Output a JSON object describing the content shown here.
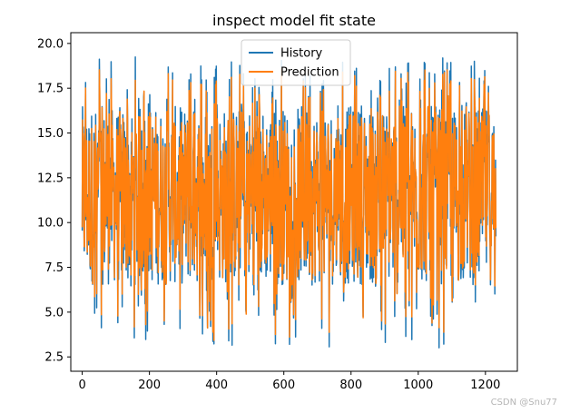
{
  "chart_data": {
    "type": "line",
    "title": "inspect model fit state",
    "xlabel": "",
    "ylabel": "",
    "xlim": [
      -34,
      1295
    ],
    "ylim": [
      1.7,
      20.6
    ],
    "xticks": [
      0,
      200,
      400,
      600,
      800,
      1000,
      1200
    ],
    "yticks": [
      2.5,
      5.0,
      7.5,
      10.0,
      12.5,
      15.0,
      17.5,
      20.0
    ],
    "xtick_labels": [
      "0",
      "200",
      "400",
      "600",
      "800",
      "1000",
      "1200"
    ],
    "ytick_labels": [
      "2.5",
      "5.0",
      "7.5",
      "10.0",
      "12.5",
      "15.0",
      "17.5",
      "20.0"
    ],
    "n_points": 1232,
    "legend_position": "upper center",
    "series": [
      {
        "name": "History",
        "color": "#1f77b4",
        "mean": 11.5,
        "min": 2.7,
        "max": 19.4
      },
      {
        "name": "Prediction",
        "color": "#ff7f0e",
        "mean": 11.5,
        "min": 2.9,
        "max": 19.3
      }
    ]
  },
  "watermark": "CSDN @Snu77"
}
